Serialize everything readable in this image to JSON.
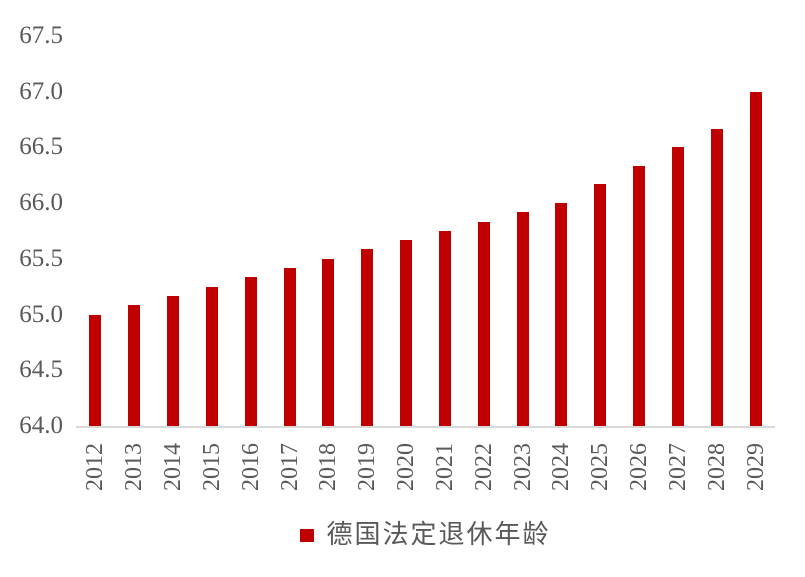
{
  "chart_data": {
    "type": "bar",
    "title": "",
    "legend": "德国法定退休年龄",
    "legend_position": "bottom",
    "categories": [
      "2012",
      "2013",
      "2014",
      "2015",
      "2016",
      "2017",
      "2018",
      "2019",
      "2020",
      "2021",
      "2022",
      "2023",
      "2024",
      "2025",
      "2026",
      "2027",
      "2028",
      "2029"
    ],
    "values": [
      65.0,
      65.083,
      65.167,
      65.25,
      65.333,
      65.417,
      65.5,
      65.583,
      65.667,
      65.75,
      65.833,
      65.917,
      66.0,
      66.167,
      66.333,
      66.5,
      66.667,
      67.0
    ],
    "ylim": [
      64.0,
      67.5
    ],
    "yticks": [
      "64.0",
      "64.5",
      "65.0",
      "65.5",
      "66.0",
      "66.5",
      "67.0",
      "67.5"
    ],
    "xlabel": "",
    "ylabel": "",
    "grid": false,
    "colors": {
      "bar": "#C00000",
      "axis_line": "#D9D9D9",
      "text": "#595959",
      "background": "#FFFFFF"
    }
  }
}
